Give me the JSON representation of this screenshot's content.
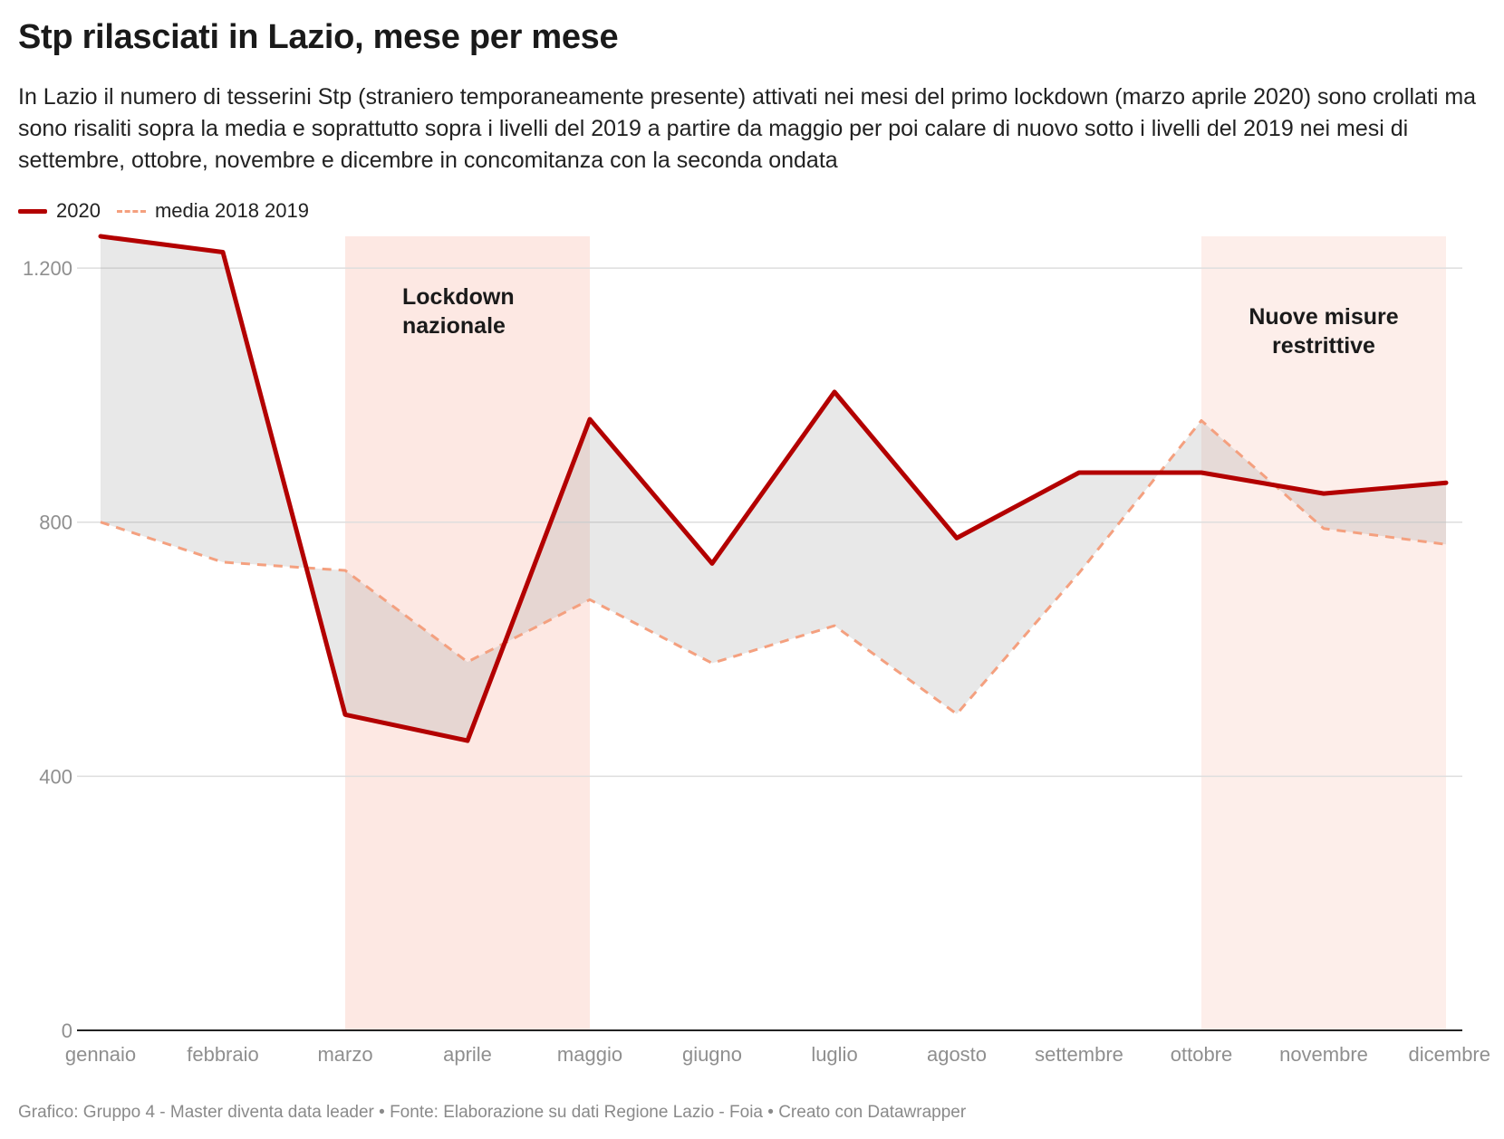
{
  "title": "Stp rilasciati in Lazio, mese per mese",
  "subtitle": "In Lazio il numero di tesserini Stp (straniero temporaneamente presente) attivati nei mesi del primo lockdown (marzo aprile 2020) sono crollati ma sono risaliti sopra la media e soprattutto sopra i livelli del 2019 a partire da maggio per poi calare di nuovo sotto i livelli del 2019 nei mesi di settembre, ottobre, novembre e dicembre in concomitanza con la seconda ondata",
  "footer": "Grafico: Gruppo 4 - Master diventa data leader • Fonte: Elaborazione su dati Regione Lazio - Foia • Creato con Datawrapper",
  "chart_data": {
    "type": "line",
    "categories": [
      "gennaio",
      "febbraio",
      "marzo",
      "aprile",
      "maggio",
      "giugno",
      "luglio",
      "agosto",
      "settembre",
      "ottobre",
      "novembre",
      "dicembre"
    ],
    "series": [
      {
        "name": "2020",
        "color": "#b30000",
        "style": "solid",
        "values": [
          1250,
          1225,
          497,
          456,
          962,
          735,
          1005,
          775,
          878,
          878,
          845,
          862
        ]
      },
      {
        "name": "media 2018 2019",
        "color": "#f4a07f",
        "style": "dashed",
        "values": [
          800,
          737,
          724,
          580,
          678,
          578,
          637,
          498,
          720,
          960,
          790,
          765
        ]
      }
    ],
    "yticks": [
      0,
      400,
      800,
      1200
    ],
    "ytick_labels": [
      "0",
      "400",
      "800",
      "1.200"
    ],
    "ylim": [
      0,
      1250
    ],
    "grid": true,
    "fill_between": true,
    "legend_position": "top-left",
    "highlight_bands": [
      {
        "from": "marzo",
        "to": "maggio",
        "label": [
          "Lockdown",
          "nazionale"
        ],
        "color": "#fde8e3"
      },
      {
        "from": "ottobre",
        "to": "dicembre",
        "label": [
          "Nuove misure",
          "restrittive"
        ],
        "color": "#fdeeea"
      }
    ]
  }
}
